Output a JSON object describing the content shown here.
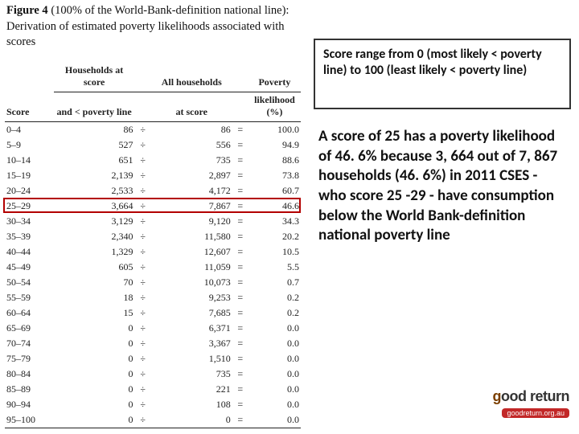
{
  "figure": {
    "label": "Figure 4",
    "caption_rest": " (100% of the World-Bank-definition national line): Derivation of estimated poverty likelihoods associated with scores"
  },
  "table": {
    "headers": {
      "score": "Score",
      "hh_below_l1": "Households at score",
      "hh_below_l2": "and < poverty line",
      "all_hh_l1": "All households",
      "all_hh_l2": "at score",
      "pov_l1": "Poverty",
      "pov_l2": "likelihood (%)"
    },
    "op_div": "÷",
    "op_eq": "=",
    "rows": [
      {
        "score": "0–4",
        "hh": "86",
        "all": "86",
        "pov": "100.0"
      },
      {
        "score": "5–9",
        "hh": "527",
        "all": "556",
        "pov": "94.9"
      },
      {
        "score": "10–14",
        "hh": "651",
        "all": "735",
        "pov": "88.6"
      },
      {
        "score": "15–19",
        "hh": "2,139",
        "all": "2,897",
        "pov": "73.8"
      },
      {
        "score": "20–24",
        "hh": "2,533",
        "all": "4,172",
        "pov": "60.7"
      },
      {
        "score": "25–29",
        "hh": "3,664",
        "all": "7,867",
        "pov": "46.6"
      },
      {
        "score": "30–34",
        "hh": "3,129",
        "all": "9,120",
        "pov": "34.3"
      },
      {
        "score": "35–39",
        "hh": "2,340",
        "all": "11,580",
        "pov": "20.2"
      },
      {
        "score": "40–44",
        "hh": "1,329",
        "all": "12,607",
        "pov": "10.5"
      },
      {
        "score": "45–49",
        "hh": "605",
        "all": "11,059",
        "pov": "5.5"
      },
      {
        "score": "50–54",
        "hh": "70",
        "all": "10,073",
        "pov": "0.7"
      },
      {
        "score": "55–59",
        "hh": "18",
        "all": "9,253",
        "pov": "0.2"
      },
      {
        "score": "60–64",
        "hh": "15",
        "all": "7,685",
        "pov": "0.2"
      },
      {
        "score": "65–69",
        "hh": "0",
        "all": "6,371",
        "pov": "0.0"
      },
      {
        "score": "70–74",
        "hh": "0",
        "all": "3,367",
        "pov": "0.0"
      },
      {
        "score": "75–79",
        "hh": "0",
        "all": "1,510",
        "pov": "0.0"
      },
      {
        "score": "80–84",
        "hh": "0",
        "all": "735",
        "pov": "0.0"
      },
      {
        "score": "85–89",
        "hh": "0",
        "all": "221",
        "pov": "0.0"
      },
      {
        "score": "90–94",
        "hh": "0",
        "all": "108",
        "pov": "0.0"
      },
      {
        "score": "95–100",
        "hh": "0",
        "all": "0",
        "pov": "0.0"
      }
    ],
    "highlight_row_index": 5,
    "highlight_color": "#b30000"
  },
  "callouts": {
    "top": "Score range from 0 (most likely < poverty line) to 100 (least likely < poverty line)",
    "main": "A score of 25 has a poverty likelihood of 46. 6% because 3, 664 out of 7, 867 households (46. 6%) in 2011 CSES - who score 25 -29 - have consumption below the World Bank-definition national poverty line"
  },
  "logo": {
    "text_g": "g",
    "text_rest": "ood return",
    "url_text": "goodreturn.org.au"
  }
}
